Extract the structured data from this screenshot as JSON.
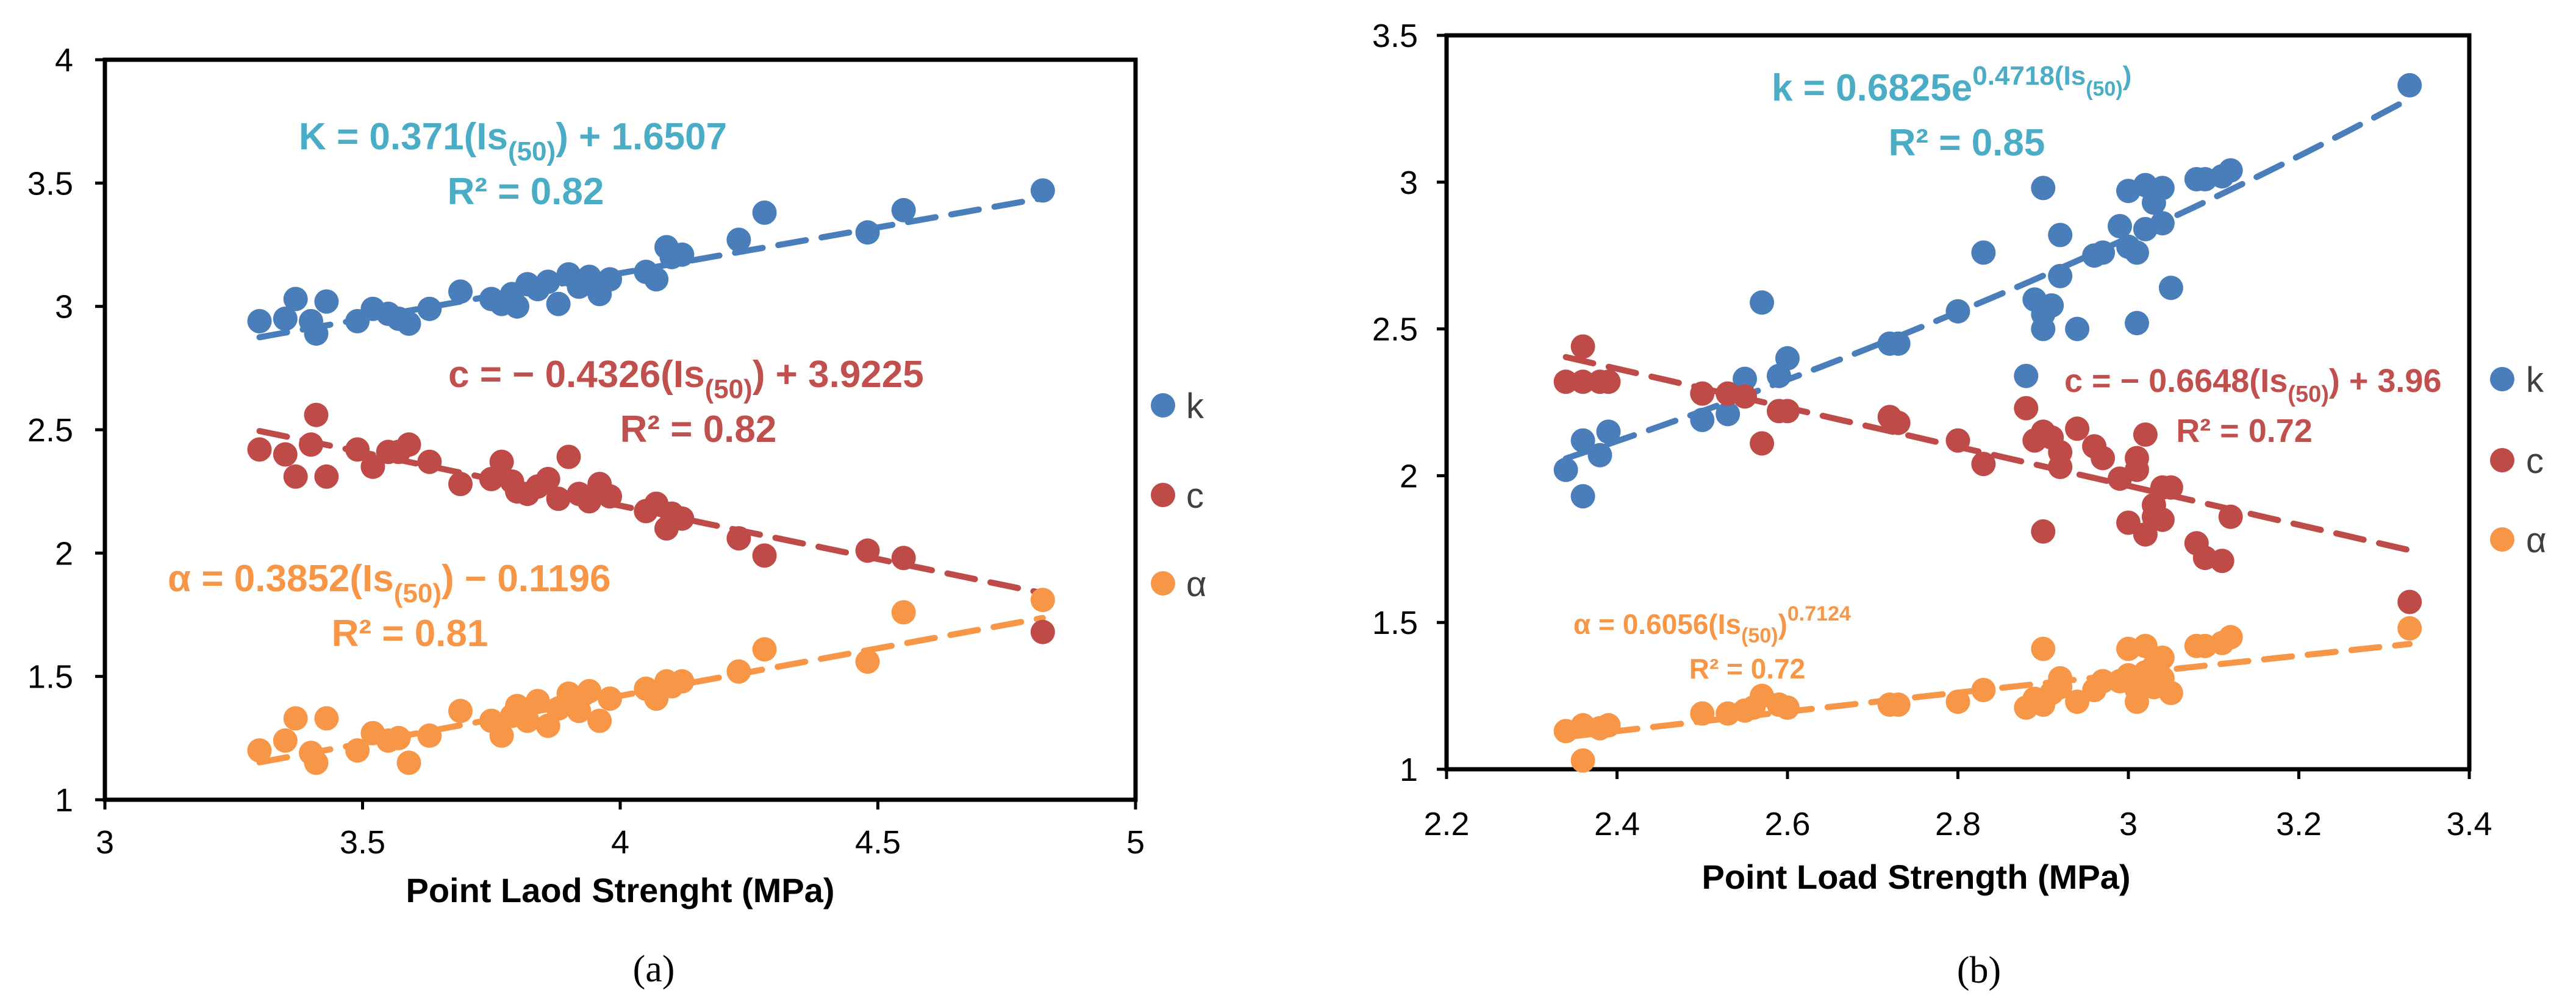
{
  "colors": {
    "k": "#4a7ebb",
    "c": "#be4b48",
    "alpha": "#f79646",
    "eq_k": "#4bacc6",
    "eq_c": "#c0504d",
    "eq_alpha": "#f79646"
  },
  "chart_data": [
    {
      "type": "scatter",
      "panel_label": "(a)",
      "xlabel": "Point Laod Strenght (MPa)",
      "ylabel": "",
      "xlim": [
        3,
        5
      ],
      "ylim": [
        1,
        4
      ],
      "xticks": [
        "3",
        "3.5",
        "4",
        "4.5",
        "5"
      ],
      "yticks": [
        "1",
        "1.5",
        "2",
        "2.5",
        "3",
        "3.5",
        "4"
      ],
      "legend": [
        "k",
        "c",
        "α"
      ],
      "series": [
        {
          "name": "k",
          "color_key": "k",
          "x": [
            3.3,
            3.35,
            3.37,
            3.4,
            3.41,
            3.43,
            3.49,
            3.52,
            3.55,
            3.57,
            3.59,
            3.63,
            3.69,
            3.75,
            3.77,
            3.79,
            3.8,
            3.82,
            3.84,
            3.86,
            3.88,
            3.9,
            3.92,
            3.94,
            3.96,
            3.98,
            4.05,
            4.07,
            4.09,
            4.1,
            4.12,
            4.23,
            4.28,
            4.48,
            4.55,
            4.82
          ],
          "y": [
            2.94,
            2.95,
            3.03,
            2.94,
            2.89,
            3.02,
            2.94,
            2.99,
            2.97,
            2.95,
            2.93,
            2.99,
            3.06,
            3.03,
            3.01,
            3.05,
            3.0,
            3.09,
            3.07,
            3.1,
            3.01,
            3.13,
            3.08,
            3.12,
            3.05,
            3.11,
            3.14,
            3.11,
            3.24,
            3.2,
            3.21,
            3.27,
            3.38,
            3.3,
            3.39,
            3.47
          ]
        },
        {
          "name": "c",
          "color_key": "c",
          "x": [
            3.3,
            3.35,
            3.37,
            3.4,
            3.41,
            3.43,
            3.49,
            3.52,
            3.55,
            3.57,
            3.59,
            3.63,
            3.69,
            3.75,
            3.77,
            3.79,
            3.8,
            3.82,
            3.84,
            3.86,
            3.88,
            3.9,
            3.92,
            3.94,
            3.96,
            3.98,
            4.05,
            4.07,
            4.09,
            4.1,
            4.12,
            4.23,
            4.28,
            4.48,
            4.55,
            4.82
          ],
          "y": [
            2.42,
            2.4,
            2.31,
            2.44,
            2.56,
            2.31,
            2.42,
            2.35,
            2.41,
            2.41,
            2.44,
            2.37,
            2.28,
            2.3,
            2.37,
            2.29,
            2.25,
            2.24,
            2.27,
            2.3,
            2.22,
            2.39,
            2.24,
            2.21,
            2.28,
            2.23,
            2.17,
            2.2,
            2.1,
            2.16,
            2.14,
            2.06,
            1.99,
            2.01,
            1.98,
            1.68
          ]
        },
        {
          "name": "α",
          "color_key": "alpha",
          "x": [
            3.3,
            3.35,
            3.37,
            3.4,
            3.41,
            3.43,
            3.49,
            3.52,
            3.55,
            3.57,
            3.59,
            3.63,
            3.69,
            3.75,
            3.77,
            3.79,
            3.8,
            3.82,
            3.84,
            3.86,
            3.88,
            3.9,
            3.92,
            3.94,
            3.96,
            3.98,
            4.05,
            4.07,
            4.09,
            4.1,
            4.12,
            4.23,
            4.28,
            4.48,
            4.55,
            4.82
          ],
          "y": [
            1.2,
            1.24,
            1.33,
            1.19,
            1.15,
            1.33,
            1.2,
            1.27,
            1.24,
            1.25,
            1.15,
            1.26,
            1.36,
            1.32,
            1.26,
            1.34,
            1.38,
            1.32,
            1.4,
            1.3,
            1.37,
            1.43,
            1.36,
            1.44,
            1.32,
            1.41,
            1.45,
            1.41,
            1.48,
            1.46,
            1.48,
            1.52,
            1.61,
            1.56,
            1.76,
            1.81
          ]
        }
      ],
      "trendlines": [
        {
          "series": "k",
          "kind": "linear",
          "slope": 0.371,
          "intercept": 1.6507,
          "x_range": [
            3.3,
            4.82
          ]
        },
        {
          "series": "c",
          "kind": "linear",
          "slope": -0.4326,
          "intercept": 3.9225,
          "x_range": [
            3.3,
            4.82
          ]
        },
        {
          "series": "α",
          "kind": "linear",
          "slope": 0.3852,
          "intercept": -0.1196,
          "x_range": [
            3.3,
            4.82
          ]
        }
      ],
      "equations": [
        {
          "color_key": "eq_k",
          "main": "K = 0.371(Is",
          "sub": "(50)",
          "tail": ") + 1.6507",
          "r2": "R² = 0.82"
        },
        {
          "color_key": "eq_c",
          "main": "c = − 0.4326(Is",
          "sub": "(50)",
          "tail": ") + 3.9225",
          "r2": "R² = 0.82"
        },
        {
          "color_key": "eq_alpha",
          "main": "α  = 0.3852(Is",
          "sub": "(50)",
          "tail": ") − 0.1196",
          "r2": "R² = 0.81"
        }
      ]
    },
    {
      "type": "scatter",
      "panel_label": "(b)",
      "xlabel": "Point Load Strength (MPa)",
      "ylabel": "",
      "xlim": [
        2.2,
        3.4
      ],
      "ylim": [
        1,
        3.5
      ],
      "xticks": [
        "2.2",
        "2.4",
        "2.6",
        "2.8",
        "3",
        "3.2",
        "3.4"
      ],
      "yticks": [
        "1",
        "1.5",
        "2",
        "2.5",
        "3",
        "3.5"
      ],
      "legend": [
        "k",
        "c",
        "α"
      ],
      "series": [
        {
          "name": "k",
          "color_key": "k",
          "x": [
            2.34,
            2.36,
            2.36,
            2.38,
            2.39,
            2.5,
            2.53,
            2.55,
            2.57,
            2.59,
            2.6,
            2.72,
            2.73,
            2.8,
            2.83,
            2.88,
            2.89,
            2.9,
            2.9,
            2.9,
            2.91,
            2.92,
            2.92,
            2.94,
            2.96,
            2.97,
            2.99,
            3.0,
            3.0,
            3.01,
            3.01,
            3.02,
            3.02,
            3.03,
            3.04,
            3.04,
            3.05,
            3.08,
            3.09,
            3.11,
            3.12,
            3.33
          ],
          "y": [
            2.02,
            1.93,
            2.12,
            2.07,
            2.15,
            2.19,
            2.21,
            2.33,
            2.59,
            2.34,
            2.4,
            2.45,
            2.45,
            2.56,
            2.76,
            2.34,
            2.6,
            2.55,
            2.98,
            2.5,
            2.58,
            2.68,
            2.82,
            2.5,
            2.75,
            2.76,
            2.85,
            2.97,
            2.78,
            2.52,
            2.76,
            2.84,
            2.99,
            2.93,
            2.86,
            2.98,
            2.64,
            3.01,
            3.01,
            3.02,
            3.04,
            3.33
          ]
        },
        {
          "name": "c",
          "color_key": "c",
          "x": [
            2.34,
            2.36,
            2.36,
            2.38,
            2.39,
            2.5,
            2.53,
            2.55,
            2.57,
            2.59,
            2.6,
            2.72,
            2.73,
            2.8,
            2.83,
            2.88,
            2.89,
            2.9,
            2.9,
            2.91,
            2.92,
            2.92,
            2.94,
            2.96,
            2.97,
            2.99,
            3.0,
            3.01,
            3.01,
            3.02,
            3.02,
            3.03,
            3.03,
            3.04,
            3.04,
            3.05,
            3.08,
            3.09,
            3.11,
            3.12,
            3.33
          ],
          "y": [
            2.32,
            2.44,
            2.32,
            2.32,
            2.32,
            2.28,
            2.28,
            2.27,
            2.11,
            2.22,
            2.22,
            2.2,
            2.18,
            2.12,
            2.04,
            2.23,
            2.12,
            2.15,
            1.81,
            2.13,
            2.03,
            2.08,
            2.16,
            2.1,
            2.06,
            1.99,
            1.84,
            2.02,
            2.06,
            2.14,
            1.8,
            1.9,
            1.86,
            1.96,
            1.85,
            1.96,
            1.77,
            1.72,
            1.71,
            1.86,
            1.57
          ]
        },
        {
          "name": "α",
          "color_key": "alpha",
          "x": [
            2.34,
            2.36,
            2.36,
            2.38,
            2.39,
            2.5,
            2.53,
            2.55,
            2.56,
            2.57,
            2.59,
            2.6,
            2.72,
            2.73,
            2.8,
            2.83,
            2.88,
            2.89,
            2.9,
            2.9,
            2.91,
            2.92,
            2.92,
            2.94,
            2.96,
            2.97,
            2.99,
            3.0,
            3.0,
            3.01,
            3.01,
            3.02,
            3.02,
            3.03,
            3.03,
            3.04,
            3.04,
            3.05,
            3.08,
            3.09,
            3.11,
            3.12,
            3.33
          ],
          "y": [
            1.13,
            1.03,
            1.15,
            1.14,
            1.15,
            1.19,
            1.19,
            1.2,
            1.21,
            1.25,
            1.22,
            1.21,
            1.22,
            1.22,
            1.23,
            1.27,
            1.21,
            1.24,
            1.41,
            1.22,
            1.26,
            1.31,
            1.28,
            1.23,
            1.27,
            1.3,
            1.3,
            1.32,
            1.41,
            1.27,
            1.23,
            1.33,
            1.42,
            1.35,
            1.28,
            1.38,
            1.31,
            1.26,
            1.42,
            1.42,
            1.43,
            1.45,
            1.48
          ]
        }
      ],
      "trendlines": [
        {
          "series": "k",
          "kind": "exponential",
          "a": 0.6825,
          "b": 0.4718,
          "x_range": [
            2.34,
            3.33
          ]
        },
        {
          "series": "c",
          "kind": "linear",
          "slope": -0.6648,
          "intercept": 3.96,
          "x_range": [
            2.34,
            3.33
          ]
        },
        {
          "series": "α",
          "kind": "power",
          "a": 0.6056,
          "b": 0.7124,
          "x_range": [
            2.34,
            3.33
          ]
        }
      ],
      "equations": [
        {
          "color_key": "eq_k",
          "main": "k = 0.6825e",
          "sup": "0.4718(Is",
          "supsub": "(50)",
          "suptail": ")",
          "r2": "R² = 0.85"
        },
        {
          "color_key": "eq_c",
          "main": "c = − 0.6648(Is",
          "sub": "(50)",
          "tail": ") + 3.96",
          "r2": "R² = 0.72"
        },
        {
          "color_key": "eq_alpha",
          "main": "α  = 0.6056(Is",
          "sub": "(50)",
          "tail": ")",
          "sup": "0.7124",
          "r2": "R² = 0.72"
        }
      ]
    }
  ]
}
